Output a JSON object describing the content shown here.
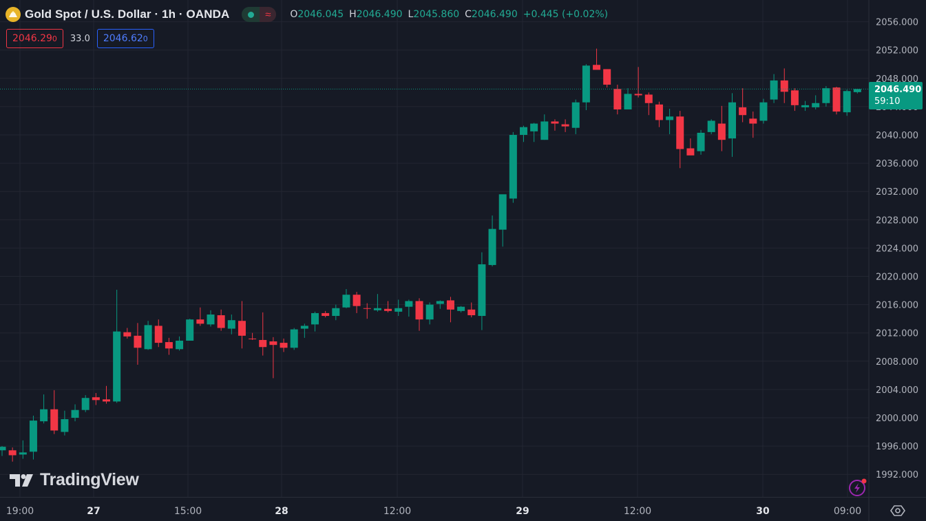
{
  "header": {
    "title": "Gold Spot / U.S. Dollar · 1h · OANDA",
    "ohlc": {
      "o_label": "O",
      "o_value": "2046.045",
      "h_label": "H",
      "h_value": "2046.490",
      "l_label": "L",
      "l_value": "2045.860",
      "c_label": "C",
      "c_value": "2046.490",
      "change": "+0.445 (+0.02%)"
    }
  },
  "quote": {
    "sell_main": "2046.29",
    "sell_small": "0",
    "spread": "33.0",
    "buy_main": "2046.62",
    "buy_small": "0"
  },
  "last_price": {
    "price": "2046.490",
    "countdown": "59:10"
  },
  "branding": {
    "logo_text": "TradingView"
  },
  "colors": {
    "up": "#089981",
    "down": "#f23645",
    "background": "#161a25",
    "grid": "#232632"
  },
  "chart_data": {
    "type": "candlestick",
    "symbol": "Gold Spot / U.S. Dollar",
    "interval": "1h",
    "ylim": [
      1988.8,
      2057.5
    ],
    "y_ticks": [
      "2056.000",
      "2052.000",
      "2048.000",
      "2044.000",
      "2040.000",
      "2036.000",
      "2032.000",
      "2028.000",
      "2024.000",
      "2020.000",
      "2016.000",
      "2012.000",
      "2008.000",
      "2004.000",
      "2000.000",
      "1996.000",
      "1992.000"
    ],
    "x_ticks": [
      "19:00",
      "27",
      "15:00",
      "28",
      "12:00",
      "29",
      "12:00",
      "30",
      "09:00"
    ],
    "bold_x_ticks": [
      "27",
      "28",
      "29",
      "30"
    ],
    "candles": [
      [
        1995.4,
        1996.0,
        1994.6,
        1995.9
      ],
      [
        1995.4,
        1995.8,
        1993.8,
        1994.7
      ],
      [
        1994.8,
        1996.8,
        1994.2,
        1995.1
      ],
      [
        1995.2,
        2000.3,
        1994.1,
        1999.6
      ],
      [
        1999.5,
        2003.3,
        1999.2,
        2001.2
      ],
      [
        2001.2,
        2003.9,
        1997.7,
        1998.2
      ],
      [
        1998.0,
        2001.0,
        1997.5,
        1999.8
      ],
      [
        2000.0,
        2001.9,
        1999.5,
        2001.1
      ],
      [
        2001.1,
        2003.2,
        2000.8,
        2002.8
      ],
      [
        2002.9,
        2003.5,
        2001.8,
        2002.5
      ],
      [
        2002.6,
        2004.5,
        2002.0,
        2002.3
      ],
      [
        2002.3,
        2018.1,
        2002.1,
        2012.2
      ],
      [
        2012.1,
        2012.7,
        2011.2,
        2011.5
      ],
      [
        2011.6,
        2013.4,
        2007.5,
        2009.9
      ],
      [
        2009.7,
        2013.7,
        2009.6,
        2013.1
      ],
      [
        2013.0,
        2013.9,
        2010.0,
        2010.6
      ],
      [
        2010.7,
        2011.3,
        2008.9,
        2009.8
      ],
      [
        2009.7,
        2011.5,
        2009.5,
        2010.9
      ],
      [
        2010.9,
        2014.0,
        2010.9,
        2013.9
      ],
      [
        2013.9,
        2015.6,
        2013.0,
        2013.3
      ],
      [
        2013.2,
        2015.2,
        2012.9,
        2014.6
      ],
      [
        2014.5,
        2015.3,
        2012.3,
        2012.7
      ],
      [
        2012.6,
        2014.6,
        2011.8,
        2013.8
      ],
      [
        2013.7,
        2016.5,
        2009.8,
        2011.6
      ],
      [
        2011.2,
        2012.0,
        2011.0,
        2011.1
      ],
      [
        2011.0,
        2014.9,
        2008.8,
        2010.0
      ],
      [
        2010.8,
        2011.4,
        2005.6,
        2010.3
      ],
      [
        2010.6,
        2011.2,
        2009.3,
        2009.9
      ],
      [
        2009.9,
        2012.7,
        2009.6,
        2012.5
      ],
      [
        2012.6,
        2013.3,
        2011.3,
        2013.0
      ],
      [
        2013.2,
        2015.0,
        2012.2,
        2014.8
      ],
      [
        2014.8,
        2015.1,
        2014.2,
        2014.4
      ],
      [
        2014.4,
        2016.0,
        2013.8,
        2015.5
      ],
      [
        2015.6,
        2018.2,
        2015.5,
        2017.4
      ],
      [
        2017.4,
        2017.8,
        2014.8,
        2015.8
      ],
      [
        2015.5,
        2016.2,
        2014.0,
        2015.4
      ],
      [
        2015.2,
        2017.5,
        2015.0,
        2015.5
      ],
      [
        2015.4,
        2016.5,
        2014.9,
        2015.1
      ],
      [
        2015.0,
        2016.7,
        2014.4,
        2015.5
      ],
      [
        2015.7,
        2016.7,
        2014.3,
        2016.5
      ],
      [
        2016.5,
        2016.9,
        2012.3,
        2013.9
      ],
      [
        2013.9,
        2016.3,
        2013.2,
        2016.0
      ],
      [
        2016.1,
        2016.6,
        2015.4,
        2016.5
      ],
      [
        2016.6,
        2017.1,
        2013.5,
        2015.3
      ],
      [
        2015.1,
        2015.8,
        2014.9,
        2015.7
      ],
      [
        2015.3,
        2016.3,
        2014.2,
        2014.5
      ],
      [
        2014.4,
        2023.4,
        2012.4,
        2021.7
      ],
      [
        2021.6,
        2028.6,
        2021.4,
        2026.7
      ],
      [
        2026.6,
        2031.1,
        2024.2,
        2031.6
      ],
      [
        2031.0,
        2040.4,
        2030.4,
        2040.0
      ],
      [
        2040.0,
        2041.3,
        2039.0,
        2041.1
      ],
      [
        2040.5,
        2041.7,
        2039.0,
        2041.6
      ],
      [
        2039.3,
        2042.9,
        2039.3,
        2041.9
      ],
      [
        2041.9,
        2042.2,
        2040.6,
        2041.6
      ],
      [
        2041.5,
        2042.2,
        2040.4,
        2041.2
      ],
      [
        2041.0,
        2045.0,
        2040.1,
        2044.6
      ],
      [
        2044.6,
        2050.0,
        2043.5,
        2049.8
      ],
      [
        2049.9,
        2052.2,
        2049.4,
        2049.2
      ],
      [
        2049.3,
        2049.3,
        2046.7,
        2047.1
      ],
      [
        2046.5,
        2047.1,
        2042.9,
        2043.6
      ],
      [
        2043.6,
        2046.6,
        2043.7,
        2045.8
      ],
      [
        2045.8,
        2049.6,
        2045.3,
        2045.6
      ],
      [
        2045.7,
        2046.0,
        2042.8,
        2044.5
      ],
      [
        2044.3,
        2044.7,
        2041.1,
        2042.1
      ],
      [
        2042.1,
        2043.7,
        2040.1,
        2042.6
      ],
      [
        2042.6,
        2043.4,
        2035.3,
        2038.0
      ],
      [
        2038.1,
        2039.5,
        2037.3,
        2037.1
      ],
      [
        2037.7,
        2040.7,
        2037.2,
        2040.3
      ],
      [
        2040.4,
        2042.2,
        2040.1,
        2042.0
      ],
      [
        2041.6,
        2044.1,
        2037.7,
        2039.3
      ],
      [
        2039.5,
        2045.9,
        2036.9,
        2044.6
      ],
      [
        2043.9,
        2046.6,
        2041.8,
        2042.8
      ],
      [
        2042.3,
        2043.3,
        2039.6,
        2041.6
      ],
      [
        2042.0,
        2045.1,
        2041.6,
        2044.6
      ],
      [
        2045.0,
        2048.6,
        2044.5,
        2047.7
      ],
      [
        2047.7,
        2049.4,
        2044.5,
        2046.1
      ],
      [
        2046.3,
        2046.6,
        2043.4,
        2044.2
      ],
      [
        2043.9,
        2044.8,
        2043.4,
        2044.2
      ],
      [
        2043.9,
        2045.6,
        2043.6,
        2044.5
      ],
      [
        2044.5,
        2046.9,
        2044.0,
        2046.6
      ],
      [
        2046.7,
        2046.8,
        2042.9,
        2043.3
      ],
      [
        2043.2,
        2046.4,
        2042.7,
        2046.2
      ],
      [
        2046.045,
        2046.49,
        2045.86,
        2046.49
      ]
    ]
  }
}
